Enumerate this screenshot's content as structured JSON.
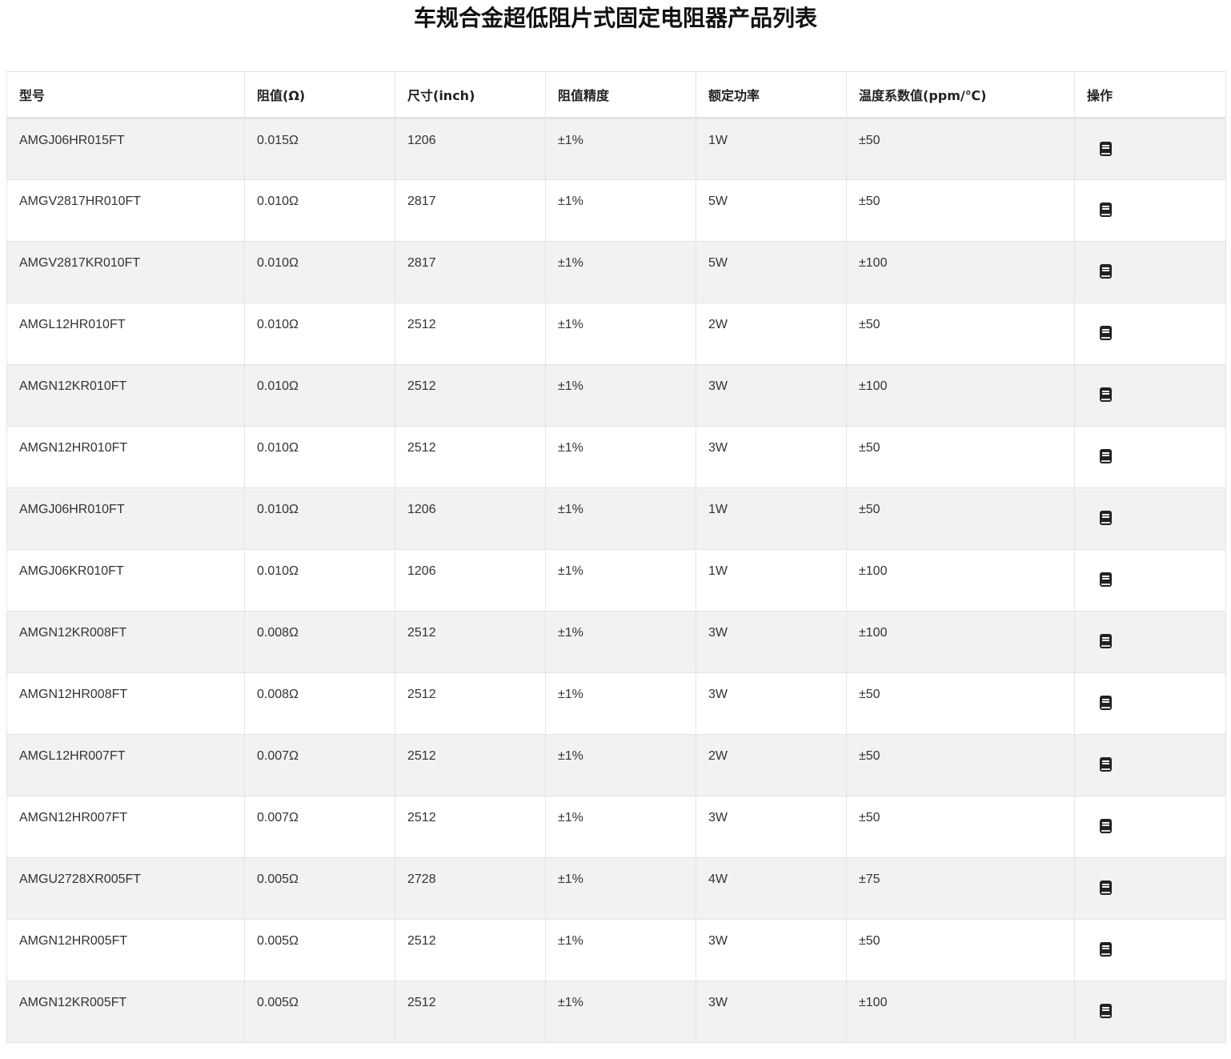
{
  "title": "车规合金超低阻片式固定电阻器产品列表",
  "columns": [
    "型号",
    "阻值(Ω)",
    "尺寸(inch)",
    "阻值精度",
    "额定功率",
    "温度系数值(ppm/℃)",
    "操作"
  ],
  "action_icon": "book-icon",
  "rows": [
    [
      "AMGJ06HR015FT",
      "0.015Ω",
      "1206",
      "±1%",
      "1W",
      "±50"
    ],
    [
      "AMGV2817HR010FT",
      "0.010Ω",
      "2817",
      "±1%",
      "5W",
      "±50"
    ],
    [
      "AMGV2817KR010FT",
      "0.010Ω",
      "2817",
      "±1%",
      "5W",
      "±100"
    ],
    [
      "AMGL12HR010FT",
      "0.010Ω",
      "2512",
      "±1%",
      "2W",
      "±50"
    ],
    [
      "AMGN12KR010FT",
      "0.010Ω",
      "2512",
      "±1%",
      "3W",
      "±100"
    ],
    [
      "AMGN12HR010FT",
      "0.010Ω",
      "2512",
      "±1%",
      "3W",
      "±50"
    ],
    [
      "AMGJ06HR010FT",
      "0.010Ω",
      "1206",
      "±1%",
      "1W",
      "±50"
    ],
    [
      "AMGJ06KR010FT",
      "0.010Ω",
      "1206",
      "±1%",
      "1W",
      "±100"
    ],
    [
      "AMGN12KR008FT",
      "0.008Ω",
      "2512",
      "±1%",
      "3W",
      "±100"
    ],
    [
      "AMGN12HR008FT",
      "0.008Ω",
      "2512",
      "±1%",
      "3W",
      "±50"
    ],
    [
      "AMGL12HR007FT",
      "0.007Ω",
      "2512",
      "±1%",
      "2W",
      "±50"
    ],
    [
      "AMGN12HR007FT",
      "0.007Ω",
      "2512",
      "±1%",
      "3W",
      "±50"
    ],
    [
      "AMGU2728XR005FT",
      "0.005Ω",
      "2728",
      "±1%",
      "4W",
      "±75"
    ],
    [
      "AMGN12HR005FT",
      "0.005Ω",
      "2512",
      "±1%",
      "3W",
      "±50"
    ],
    [
      "AMGN12KR005FT",
      "0.005Ω",
      "2512",
      "±1%",
      "3W",
      "±100"
    ]
  ]
}
